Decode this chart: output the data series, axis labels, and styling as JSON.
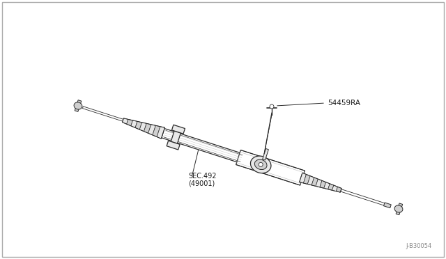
{
  "background_color": "#ffffff",
  "line_color": "#2a2a2a",
  "label_color": "#1a1a1a",
  "label1_text": "54459RA",
  "label2_line1": "SEC.492",
  "label2_line2": "(49001)",
  "part_number": "J-B30054",
  "fig_width": 6.4,
  "fig_height": 3.72,
  "dpi": 100,
  "border_color": "#aaaaaa",
  "fill_light": "#e8e8e8",
  "fill_mid": "#d0d0d0",
  "fill_white": "#ffffff",
  "shade_color": "#c8c8c8"
}
